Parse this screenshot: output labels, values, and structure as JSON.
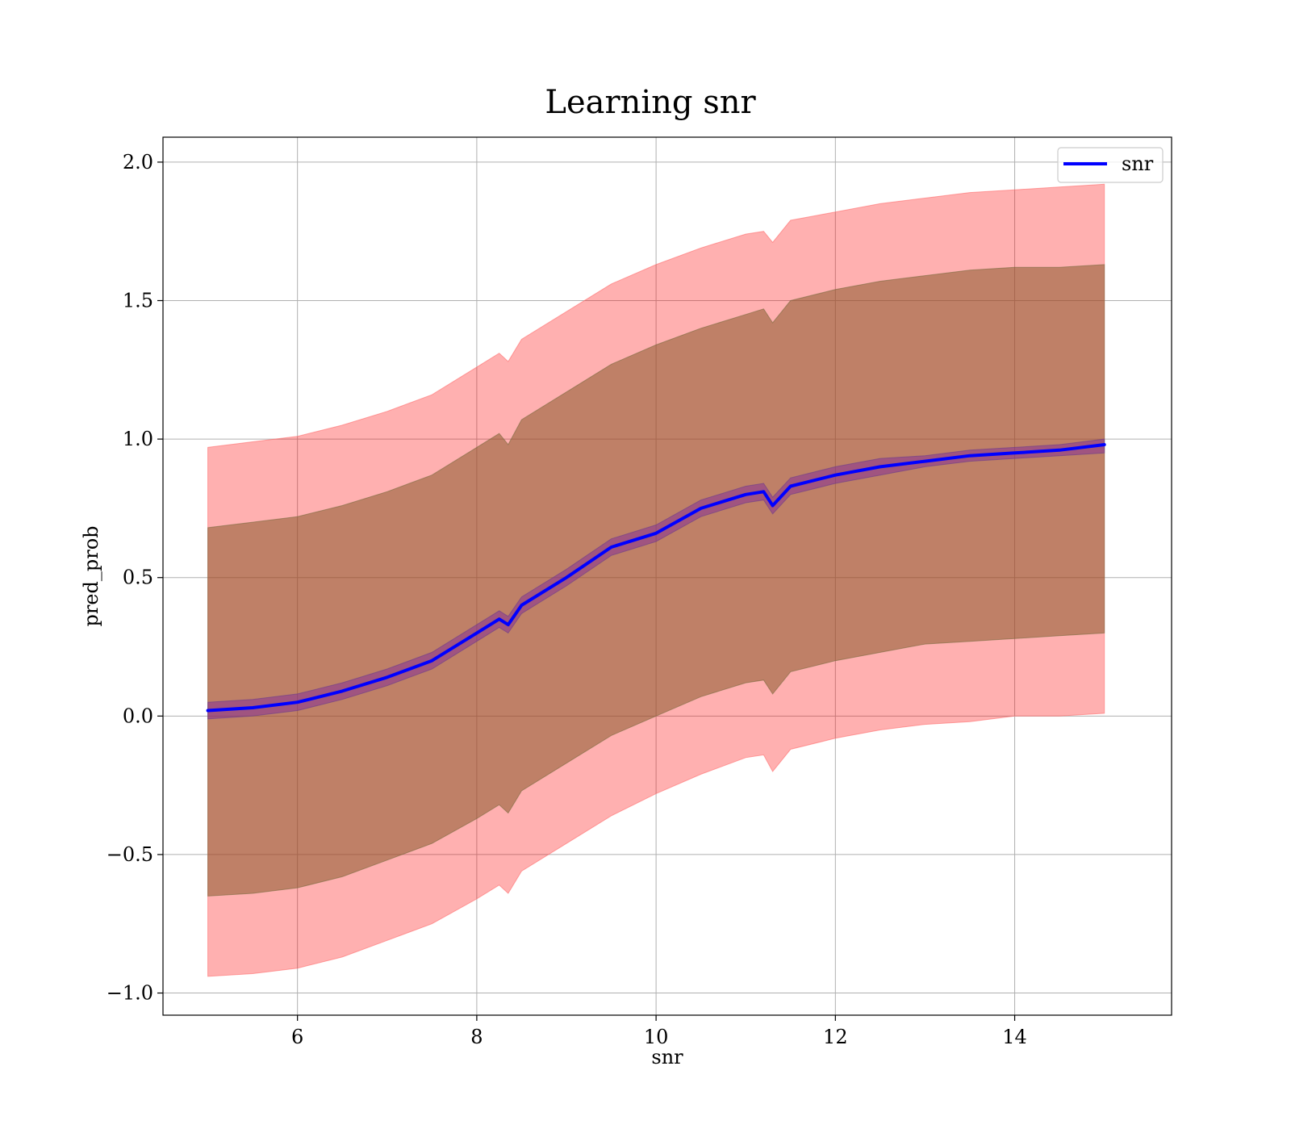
{
  "chart_data": {
    "type": "line",
    "title": "Learning snr",
    "xlabel": "snr",
    "ylabel": "pred_prob",
    "xlim": [
      4.5,
      15.75
    ],
    "ylim": [
      -1.08,
      2.09
    ],
    "xticks": [
      6,
      8,
      10,
      12,
      14
    ],
    "xtick_labels": [
      "6",
      "8",
      "10",
      "12",
      "14"
    ],
    "yticks": [
      -1.0,
      -0.5,
      0.0,
      0.5,
      1.0,
      1.5,
      2.0
    ],
    "ytick_labels": [
      "−1.0",
      "−0.5",
      "0.0",
      "0.5",
      "1.0",
      "1.5",
      "2.0"
    ],
    "grid": true,
    "legend": {
      "position": "top-right",
      "entries": [
        {
          "label": "snr",
          "color": "#0000ff"
        }
      ]
    },
    "colors": {
      "mean_line": "#0000ff",
      "outer_band": "#ff0000",
      "middle_band": "#8b5a2b",
      "inner_band": "#7a1fa0"
    },
    "x": [
      5.0,
      5.5,
      6.0,
      6.5,
      7.0,
      7.5,
      8.0,
      8.25,
      8.35,
      8.5,
      9.0,
      9.5,
      10.0,
      10.5,
      11.0,
      11.2,
      11.3,
      11.5,
      12.0,
      12.5,
      13.0,
      13.5,
      14.0,
      14.5,
      15.0
    ],
    "series": [
      {
        "name": "snr",
        "values": [
          0.02,
          0.03,
          0.05,
          0.09,
          0.14,
          0.2,
          0.3,
          0.35,
          0.33,
          0.4,
          0.5,
          0.61,
          0.66,
          0.75,
          0.8,
          0.81,
          0.76,
          0.83,
          0.87,
          0.9,
          0.92,
          0.94,
          0.95,
          0.96,
          0.98
        ]
      }
    ],
    "bands": [
      {
        "role": "outer",
        "lower": [
          -0.94,
          -0.93,
          -0.91,
          -0.87,
          -0.81,
          -0.75,
          -0.66,
          -0.61,
          -0.64,
          -0.56,
          -0.46,
          -0.36,
          -0.28,
          -0.21,
          -0.15,
          -0.14,
          -0.2,
          -0.12,
          -0.08,
          -0.05,
          -0.03,
          -0.02,
          0.0,
          0.0,
          0.01
        ],
        "upper": [
          0.97,
          0.99,
          1.01,
          1.05,
          1.1,
          1.16,
          1.26,
          1.31,
          1.28,
          1.36,
          1.46,
          1.56,
          1.63,
          1.69,
          1.74,
          1.75,
          1.71,
          1.79,
          1.82,
          1.85,
          1.87,
          1.89,
          1.9,
          1.91,
          1.92
        ]
      },
      {
        "role": "middle",
        "lower": [
          -0.65,
          -0.64,
          -0.62,
          -0.58,
          -0.52,
          -0.46,
          -0.37,
          -0.32,
          -0.35,
          -0.27,
          -0.17,
          -0.07,
          0.0,
          0.07,
          0.12,
          0.13,
          0.08,
          0.16,
          0.2,
          0.23,
          0.26,
          0.27,
          0.28,
          0.29,
          0.3
        ],
        "upper": [
          0.68,
          0.7,
          0.72,
          0.76,
          0.81,
          0.87,
          0.97,
          1.02,
          0.98,
          1.07,
          1.17,
          1.27,
          1.34,
          1.4,
          1.45,
          1.47,
          1.42,
          1.5,
          1.54,
          1.57,
          1.59,
          1.61,
          1.62,
          1.62,
          1.63
        ]
      },
      {
        "role": "inner",
        "lower": [
          -0.01,
          0.0,
          0.02,
          0.06,
          0.11,
          0.17,
          0.27,
          0.32,
          0.3,
          0.37,
          0.47,
          0.58,
          0.63,
          0.72,
          0.77,
          0.78,
          0.73,
          0.8,
          0.84,
          0.87,
          0.9,
          0.92,
          0.93,
          0.94,
          0.95
        ],
        "upper": [
          0.05,
          0.06,
          0.08,
          0.12,
          0.17,
          0.23,
          0.33,
          0.38,
          0.36,
          0.43,
          0.53,
          0.64,
          0.69,
          0.78,
          0.83,
          0.84,
          0.79,
          0.86,
          0.9,
          0.93,
          0.94,
          0.96,
          0.97,
          0.98,
          1.0
        ]
      }
    ]
  }
}
